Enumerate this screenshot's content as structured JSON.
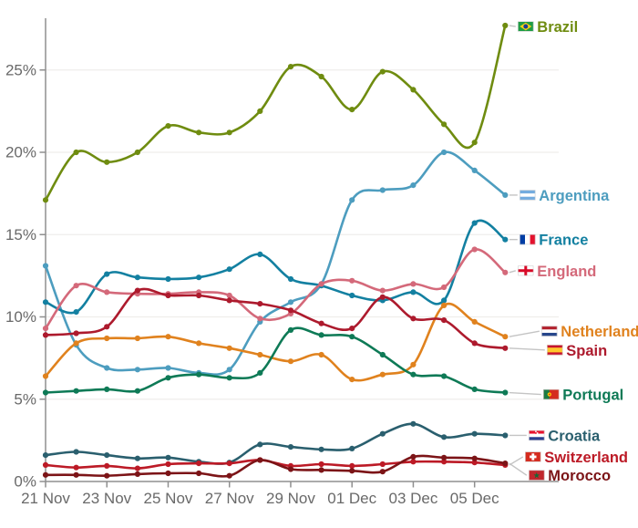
{
  "chart_data": {
    "type": "line",
    "title": "",
    "unit": "%",
    "grid": "horizontal",
    "legend_position": "right-of-line-ends",
    "x": [
      "21 Nov",
      "22 Nov",
      "23 Nov",
      "24 Nov",
      "25 Nov",
      "26 Nov",
      "27 Nov",
      "28 Nov",
      "29 Nov",
      "30 Nov",
      "01 Dec",
      "02 Dec",
      "03 Dec",
      "04 Dec",
      "05 Dec",
      "06 Dec"
    ],
    "x_ticks": [
      {
        "i": 0,
        "label": "21 Nov"
      },
      {
        "i": 2,
        "label": "23 Nov"
      },
      {
        "i": 4,
        "label": "25 Nov"
      },
      {
        "i": 6,
        "label": "27 Nov"
      },
      {
        "i": 8,
        "label": "29 Nov"
      },
      {
        "i": 10,
        "label": "01 Dec"
      },
      {
        "i": 12,
        "label": "03 Dec"
      },
      {
        "i": 14,
        "label": "05 Dec"
      }
    ],
    "y_ticks": [
      {
        "v": 0,
        "label": "0%"
      },
      {
        "v": 5,
        "label": "5%"
      },
      {
        "v": 10,
        "label": "10%"
      },
      {
        "v": 15,
        "label": "15%"
      },
      {
        "v": 20,
        "label": "20%"
      },
      {
        "v": 25,
        "label": "25%"
      }
    ],
    "ylim": [
      0,
      28.5
    ],
    "series": [
      {
        "name": "Brazil",
        "flag": "brazil",
        "color": "#6f8c10",
        "values": [
          17.1,
          20.0,
          19.4,
          20.0,
          21.6,
          21.2,
          21.2,
          22.5,
          25.2,
          24.6,
          22.6,
          24.9,
          23.8,
          21.7,
          20.6,
          27.7
        ]
      },
      {
        "name": "Argentina",
        "flag": "argentina",
        "color": "#4d9dbf",
        "values": [
          13.1,
          8.3,
          6.9,
          6.8,
          6.9,
          6.6,
          6.8,
          9.7,
          10.9,
          12.0,
          17.1,
          17.7,
          18.0,
          20.0,
          18.9,
          17.4
        ]
      },
      {
        "name": "France",
        "flag": "france",
        "color": "#1380a1",
        "values": [
          10.9,
          10.3,
          12.6,
          12.4,
          12.3,
          12.4,
          12.9,
          13.8,
          12.3,
          11.9,
          11.3,
          11.0,
          11.5,
          11.0,
          15.7,
          14.7
        ]
      },
      {
        "name": "England",
        "flag": "england",
        "color": "#d4697a",
        "values": [
          9.3,
          11.9,
          11.5,
          11.4,
          11.4,
          11.5,
          11.3,
          9.9,
          10.2,
          12.0,
          12.2,
          11.6,
          12.0,
          11.8,
          14.1,
          12.7
        ]
      },
      {
        "name": "Netherlands",
        "flag": "netherlands",
        "color": "#e0821e",
        "values": [
          6.4,
          8.4,
          8.7,
          8.7,
          8.8,
          8.4,
          8.1,
          7.7,
          7.3,
          7.7,
          6.2,
          6.5,
          7.1,
          10.7,
          9.7,
          8.8
        ]
      },
      {
        "name": "Spain",
        "flag": "spain",
        "color": "#ad1a2d",
        "values": [
          8.9,
          9.0,
          9.4,
          11.6,
          11.3,
          11.3,
          11.0,
          10.8,
          10.4,
          9.6,
          9.3,
          11.2,
          9.9,
          9.8,
          8.4,
          8.1
        ]
      },
      {
        "name": "Portugal",
        "flag": "portugal",
        "color": "#0e7a56",
        "values": [
          5.4,
          5.5,
          5.6,
          5.5,
          6.3,
          6.5,
          6.3,
          6.6,
          9.2,
          8.9,
          8.8,
          7.7,
          6.5,
          6.4,
          5.6,
          5.4
        ]
      },
      {
        "name": "Croatia",
        "flag": "croatia",
        "color": "#2a5f6e",
        "values": [
          1.6,
          1.8,
          1.6,
          1.4,
          1.45,
          1.2,
          1.15,
          2.25,
          2.1,
          1.95,
          2.0,
          2.9,
          3.5,
          2.7,
          2.9,
          2.8
        ]
      },
      {
        "name": "Switzerland",
        "flag": "switzerland",
        "color": "#bc1a26",
        "values": [
          1.0,
          0.85,
          0.95,
          0.8,
          1.05,
          1.1,
          1.1,
          1.3,
          0.95,
          1.05,
          0.95,
          1.05,
          1.2,
          1.2,
          1.15,
          1.0
        ]
      },
      {
        "name": "Morocco",
        "flag": "morocco",
        "color": "#7c1417",
        "values": [
          0.4,
          0.4,
          0.35,
          0.45,
          0.5,
          0.5,
          0.35,
          1.3,
          0.75,
          0.7,
          0.65,
          0.6,
          1.5,
          1.45,
          1.4,
          1.1
        ]
      }
    ],
    "style": {
      "background": "#ffffff",
      "axis_color": "#8f8f8f",
      "grid_color": "#efedeb",
      "tick_label_color": "#696969",
      "connector_color": "#c4c4c4"
    }
  }
}
